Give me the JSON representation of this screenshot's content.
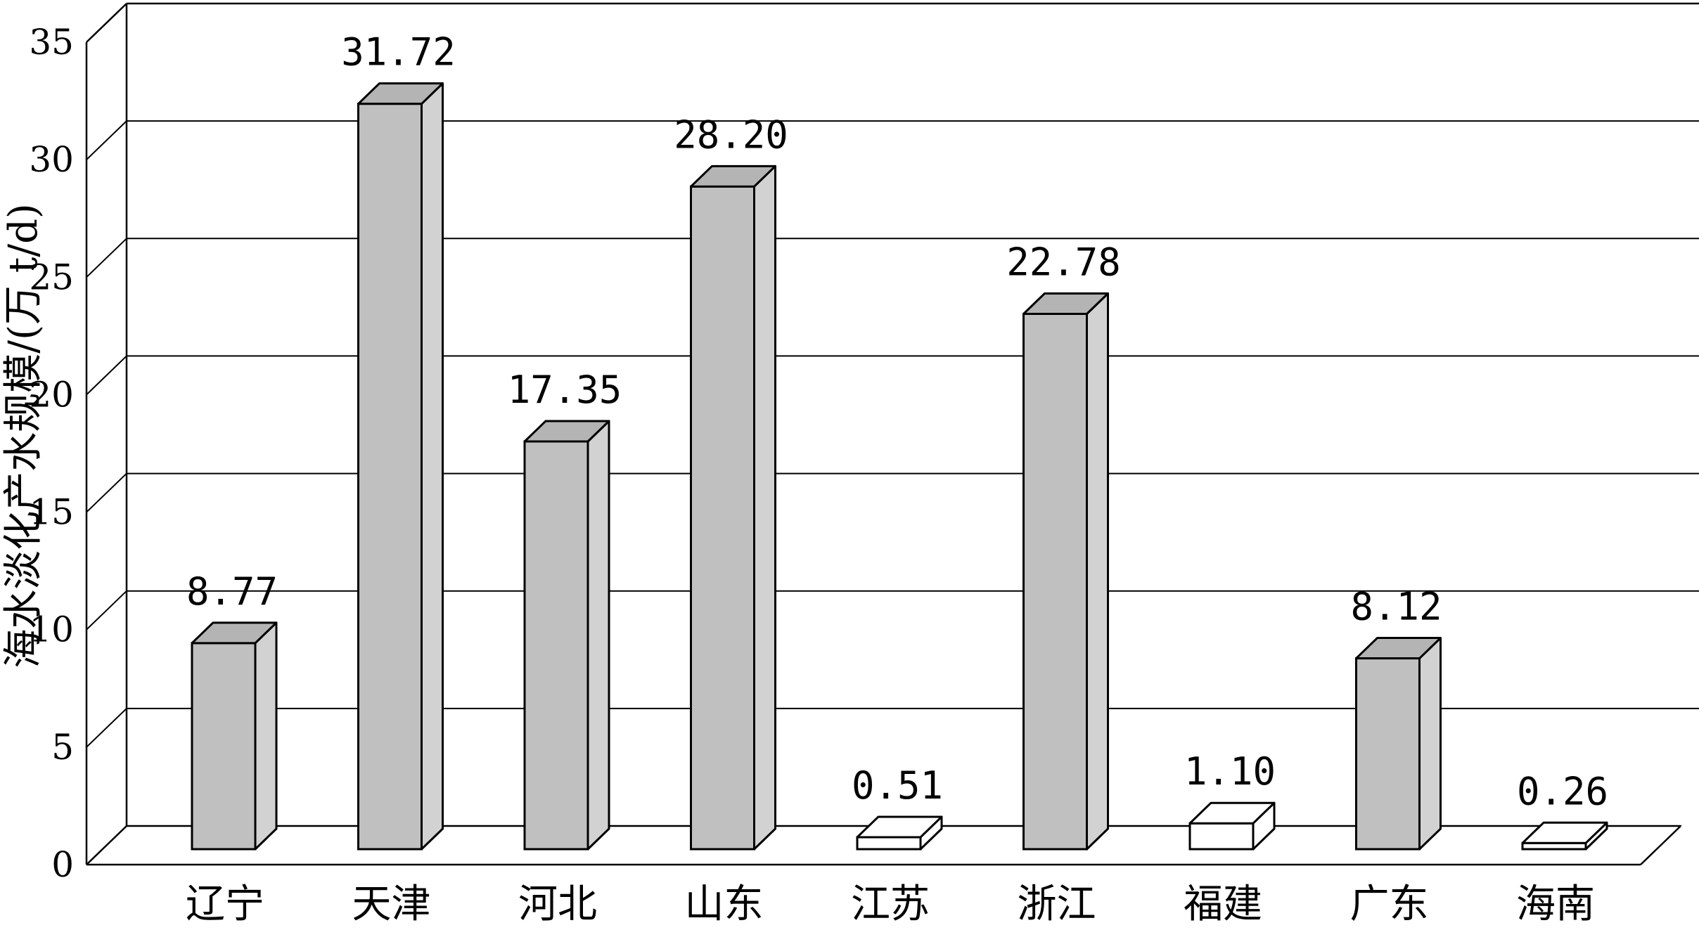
{
  "chart_data": {
    "type": "bar",
    "style": "3d-column",
    "title": "",
    "xlabel": "",
    "ylabel": "海水淡化产水规模/(万 t/d)",
    "ylim": [
      0,
      35
    ],
    "yticks": [
      0,
      5,
      10,
      15,
      20,
      25,
      30,
      35
    ],
    "grid": true,
    "categories": [
      "辽宁",
      "天津",
      "河北",
      "山东",
      "江苏",
      "浙江",
      "福建",
      "广东",
      "海南"
    ],
    "values": [
      8.77,
      31.72,
      17.35,
      28.2,
      0.51,
      22.78,
      1.1,
      8.12,
      0.26
    ],
    "value_labels": [
      "8.77",
      "31.72",
      "17.35",
      "28.20",
      "0.51",
      "22.78",
      "1.10",
      "8.12",
      "0.26"
    ],
    "colors": {
      "bar_front": "#c0c0c0",
      "bar_top": "#b4b4b4",
      "bar_side": "#d2d2d2",
      "small_bar": "#ffffff",
      "grid": "#000000"
    }
  }
}
